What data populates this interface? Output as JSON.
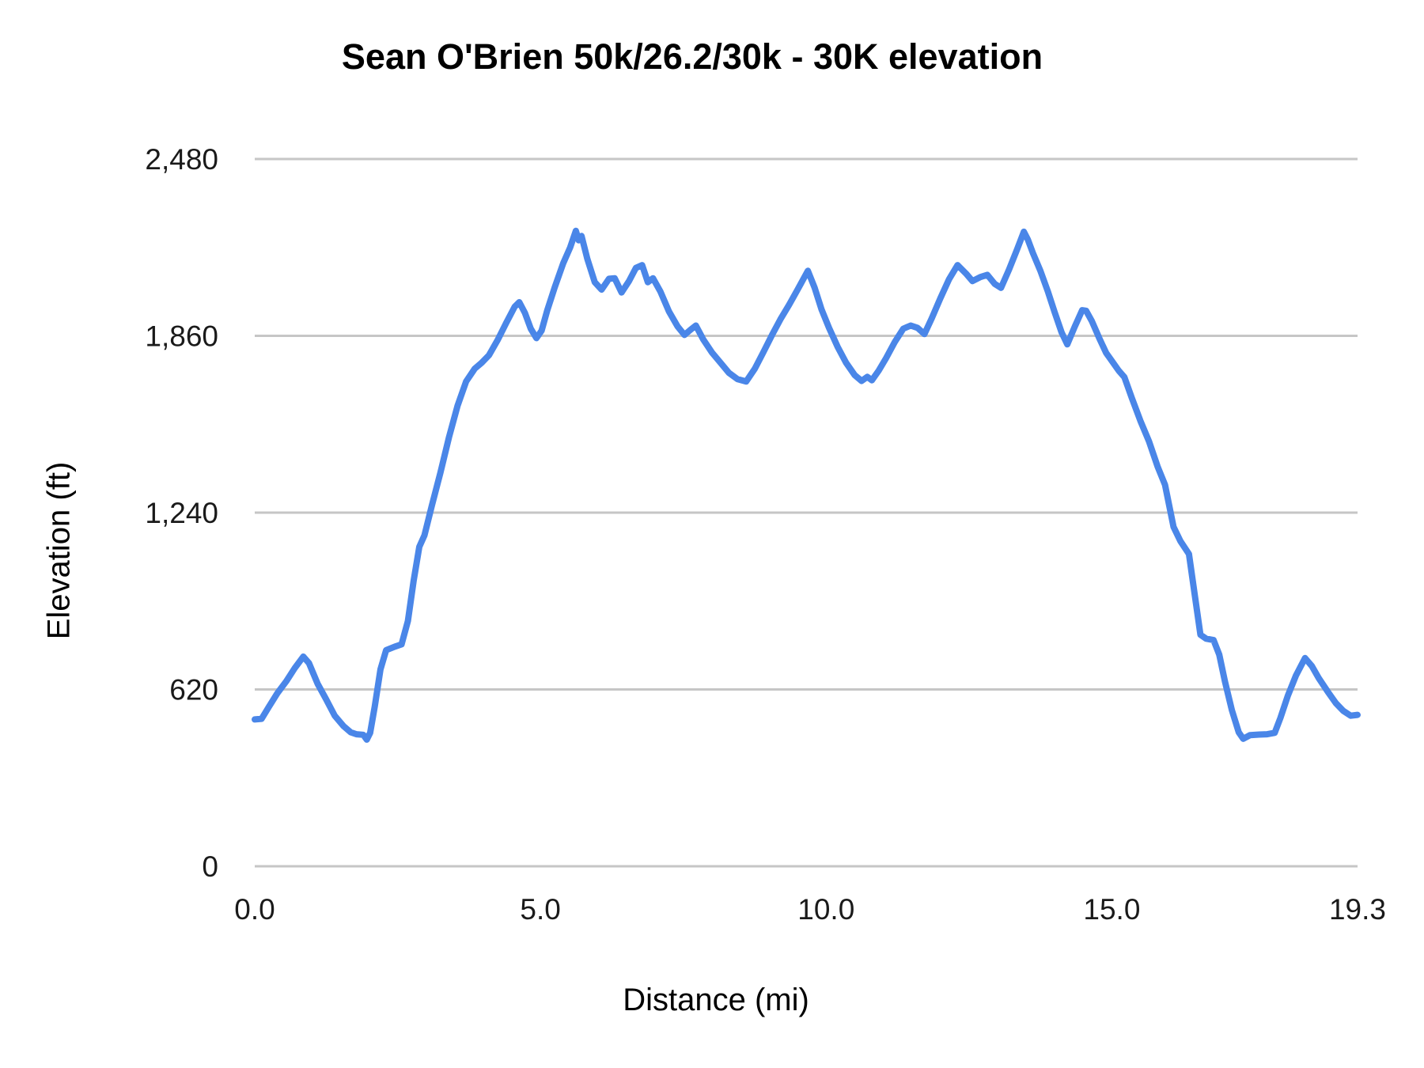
{
  "chart": {
    "title": "Sean O'Brien 50k/26.2/30k - 30K elevation",
    "x_axis_title": "Distance (mi)",
    "y_axis_title": "Elevation (ft)"
  },
  "colors": {
    "line": "#4a86e8",
    "gridline": "#c6c6c6",
    "tick_text": "#1a1a1a",
    "background": "#ffffff"
  },
  "chart_data": {
    "type": "line",
    "title": "Sean O'Brien 50k/26.2/30k - 30K elevation",
    "xlabel": "Distance (mi)",
    "ylabel": "Elevation (ft)",
    "xlim": [
      0,
      19.3
    ],
    "ylim": [
      0,
      2480
    ],
    "x_ticks": [
      "0.0",
      "5.0",
      "10.0",
      "15.0",
      "19.3"
    ],
    "x_tick_values": [
      0,
      5,
      10,
      15,
      19.3
    ],
    "y_ticks": [
      "0",
      "620",
      "1,240",
      "1,860",
      "2,480"
    ],
    "y_tick_values": [
      0,
      620,
      1240,
      1860,
      2480
    ],
    "grid": "horizontal",
    "legend": "none",
    "series": [
      {
        "name": "Elevation (ft)",
        "color": "#4a86e8",
        "points": [
          [
            0.0,
            515
          ],
          [
            0.12,
            517
          ],
          [
            0.25,
            560
          ],
          [
            0.4,
            608
          ],
          [
            0.55,
            648
          ],
          [
            0.7,
            695
          ],
          [
            0.85,
            735
          ],
          [
            0.95,
            712
          ],
          [
            1.1,
            640
          ],
          [
            1.25,
            585
          ],
          [
            1.4,
            528
          ],
          [
            1.55,
            492
          ],
          [
            1.68,
            470
          ],
          [
            1.78,
            463
          ],
          [
            1.9,
            461
          ],
          [
            1.96,
            444
          ],
          [
            2.02,
            468
          ],
          [
            2.1,
            560
          ],
          [
            2.2,
            690
          ],
          [
            2.3,
            758
          ],
          [
            2.45,
            770
          ],
          [
            2.57,
            778
          ],
          [
            2.68,
            860
          ],
          [
            2.78,
            1000
          ],
          [
            2.88,
            1120
          ],
          [
            2.97,
            1160
          ],
          [
            3.1,
            1265
          ],
          [
            3.25,
            1380
          ],
          [
            3.4,
            1505
          ],
          [
            3.55,
            1615
          ],
          [
            3.7,
            1700
          ],
          [
            3.85,
            1745
          ],
          [
            3.97,
            1765
          ],
          [
            4.1,
            1792
          ],
          [
            4.25,
            1845
          ],
          [
            4.4,
            1905
          ],
          [
            4.55,
            1962
          ],
          [
            4.63,
            1978
          ],
          [
            4.73,
            1940
          ],
          [
            4.83,
            1885
          ],
          [
            4.93,
            1852
          ],
          [
            5.02,
            1878
          ],
          [
            5.12,
            1950
          ],
          [
            5.25,
            2030
          ],
          [
            5.4,
            2115
          ],
          [
            5.52,
            2170
          ],
          [
            5.62,
            2228
          ],
          [
            5.67,
            2195
          ],
          [
            5.72,
            2210
          ],
          [
            5.82,
            2130
          ],
          [
            5.95,
            2048
          ],
          [
            6.07,
            2022
          ],
          [
            6.2,
            2060
          ],
          [
            6.3,
            2062
          ],
          [
            6.42,
            2012
          ],
          [
            6.55,
            2052
          ],
          [
            6.67,
            2098
          ],
          [
            6.78,
            2108
          ],
          [
            6.88,
            2048
          ],
          [
            6.97,
            2062
          ],
          [
            7.1,
            2015
          ],
          [
            7.25,
            1945
          ],
          [
            7.4,
            1893
          ],
          [
            7.52,
            1863
          ],
          [
            7.63,
            1882
          ],
          [
            7.72,
            1896
          ],
          [
            7.85,
            1847
          ],
          [
            8.0,
            1802
          ],
          [
            8.15,
            1766
          ],
          [
            8.3,
            1730
          ],
          [
            8.45,
            1708
          ],
          [
            8.6,
            1700
          ],
          [
            8.75,
            1744
          ],
          [
            8.9,
            1802
          ],
          [
            9.05,
            1862
          ],
          [
            9.2,
            1918
          ],
          [
            9.35,
            1968
          ],
          [
            9.5,
            2022
          ],
          [
            9.68,
            2088
          ],
          [
            9.8,
            2028
          ],
          [
            9.92,
            1952
          ],
          [
            10.05,
            1888
          ],
          [
            10.2,
            1822
          ],
          [
            10.35,
            1765
          ],
          [
            10.5,
            1722
          ],
          [
            10.62,
            1702
          ],
          [
            10.72,
            1716
          ],
          [
            10.8,
            1704
          ],
          [
            10.92,
            1738
          ],
          [
            11.05,
            1782
          ],
          [
            11.2,
            1838
          ],
          [
            11.35,
            1885
          ],
          [
            11.48,
            1896
          ],
          [
            11.6,
            1888
          ],
          [
            11.72,
            1866
          ],
          [
            11.85,
            1922
          ],
          [
            12.0,
            1992
          ],
          [
            12.15,
            2058
          ],
          [
            12.3,
            2108
          ],
          [
            12.45,
            2078
          ],
          [
            12.56,
            2052
          ],
          [
            12.7,
            2066
          ],
          [
            12.82,
            2074
          ],
          [
            12.95,
            2042
          ],
          [
            13.06,
            2028
          ],
          [
            13.2,
            2092
          ],
          [
            13.34,
            2162
          ],
          [
            13.46,
            2225
          ],
          [
            13.53,
            2198
          ],
          [
            13.62,
            2150
          ],
          [
            13.75,
            2088
          ],
          [
            13.88,
            2016
          ],
          [
            14.0,
            1942
          ],
          [
            14.12,
            1872
          ],
          [
            14.22,
            1830
          ],
          [
            14.35,
            1892
          ],
          [
            14.48,
            1950
          ],
          [
            14.55,
            1948
          ],
          [
            14.65,
            1912
          ],
          [
            14.78,
            1852
          ],
          [
            14.9,
            1800
          ],
          [
            15.0,
            1772
          ],
          [
            15.12,
            1738
          ],
          [
            15.22,
            1715
          ],
          [
            15.35,
            1642
          ],
          [
            15.5,
            1562
          ],
          [
            15.65,
            1490
          ],
          [
            15.8,
            1402
          ],
          [
            15.93,
            1338
          ],
          [
            16.08,
            1190
          ],
          [
            16.2,
            1140
          ],
          [
            16.35,
            1095
          ],
          [
            16.45,
            952
          ],
          [
            16.55,
            812
          ],
          [
            16.65,
            798
          ],
          [
            16.78,
            793
          ],
          [
            16.88,
            742
          ],
          [
            16.98,
            648
          ],
          [
            17.1,
            548
          ],
          [
            17.22,
            470
          ],
          [
            17.3,
            447
          ],
          [
            17.42,
            460
          ],
          [
            17.58,
            462
          ],
          [
            17.72,
            463
          ],
          [
            17.85,
            468
          ],
          [
            17.95,
            520
          ],
          [
            18.08,
            598
          ],
          [
            18.22,
            668
          ],
          [
            18.38,
            730
          ],
          [
            18.5,
            702
          ],
          [
            18.62,
            660
          ],
          [
            18.78,
            612
          ],
          [
            18.92,
            572
          ],
          [
            19.05,
            545
          ],
          [
            19.18,
            528
          ],
          [
            19.3,
            531
          ]
        ]
      }
    ]
  }
}
